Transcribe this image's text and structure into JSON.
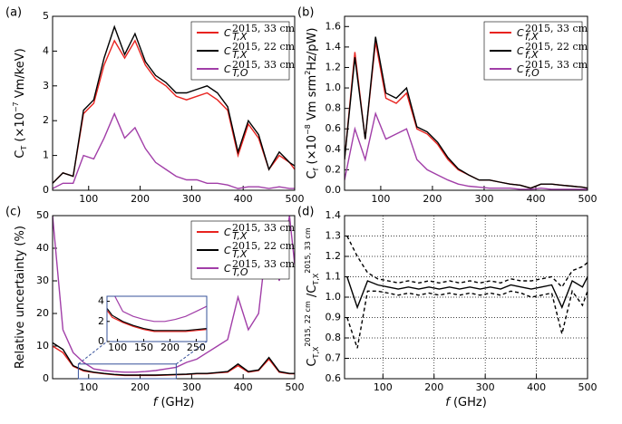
{
  "chart_data": [
    {
      "type": "line",
      "panel": "(a)",
      "ylabel": [
        [
          "C",
          ""
        ],
        [
          "T",
          "sub"
        ],
        [
          " (×10",
          ""
        ],
        [
          "−7",
          "sup"
        ],
        [
          " Vm/keV)",
          ""
        ]
      ],
      "x": [
        30,
        50,
        70,
        90,
        110,
        130,
        150,
        170,
        190,
        210,
        230,
        250,
        270,
        290,
        310,
        330,
        350,
        370,
        390,
        410,
        430,
        450,
        470,
        490,
        500
      ],
      "xlim": [
        30,
        500
      ],
      "ylim": [
        0,
        5
      ],
      "xticks": [
        100,
        200,
        300,
        400,
        500
      ],
      "yticks": [
        0,
        1,
        2,
        3,
        4,
        5
      ],
      "legend": "upper right",
      "series": [
        {
          "name": "C",
          "subscript": "T,X",
          "superscript": "2015, 33 cm",
          "color": "#e8231f",
          "values": [
            0.2,
            0.5,
            0.4,
            2.2,
            2.5,
            3.6,
            4.3,
            3.8,
            4.3,
            3.6,
            3.2,
            3.0,
            2.7,
            2.6,
            2.7,
            2.8,
            2.6,
            2.3,
            1.0,
            1.9,
            1.5,
            0.6,
            1.0,
            0.8,
            0.6
          ]
        },
        {
          "name": "C",
          "subscript": "T,X",
          "superscript": "2015, 22 cm",
          "color": "#000000",
          "values": [
            0.2,
            0.5,
            0.4,
            2.3,
            2.6,
            3.8,
            4.7,
            3.9,
            4.5,
            3.7,
            3.3,
            3.1,
            2.8,
            2.8,
            2.9,
            3.0,
            2.8,
            2.4,
            1.1,
            2.0,
            1.6,
            0.6,
            1.1,
            0.8,
            0.7
          ]
        },
        {
          "name": "C",
          "subscript": "T,O",
          "superscript": "2015, 33 cm",
          "color": "#a13ea8",
          "values": [
            0.05,
            0.2,
            0.2,
            1.0,
            0.9,
            1.5,
            2.2,
            1.5,
            1.8,
            1.2,
            0.8,
            0.6,
            0.4,
            0.3,
            0.3,
            0.2,
            0.2,
            0.15,
            0.05,
            0.1,
            0.1,
            0.05,
            0.1,
            0.05,
            0.05
          ]
        }
      ]
    },
    {
      "type": "line",
      "panel": "(b)",
      "ylabel": [
        [
          "C",
          ""
        ],
        [
          "f",
          "sub"
        ],
        [
          " (×10",
          ""
        ],
        [
          "−8",
          "sup"
        ],
        [
          " Vm srm",
          ""
        ],
        [
          "2",
          "sup"
        ],
        [
          "Hz/pW)",
          ""
        ]
      ],
      "x": [
        30,
        50,
        70,
        90,
        110,
        130,
        150,
        170,
        190,
        210,
        230,
        250,
        270,
        290,
        310,
        330,
        350,
        370,
        390,
        410,
        430,
        450,
        470,
        490,
        500
      ],
      "xlim": [
        30,
        500
      ],
      "ylim": [
        0,
        1.7
      ],
      "xticks": [
        100,
        200,
        300,
        400,
        500
      ],
      "yticks": [
        {
          "value": 0,
          "label": "0.0"
        },
        0.2,
        0.4,
        0.6,
        0.8,
        {
          "value": 1,
          "label": "1.0"
        },
        1.2,
        1.4,
        1.6
      ],
      "legend": "upper right",
      "series": [
        {
          "name": "C",
          "subscript": "f,X",
          "superscript": "2015, 33 cm",
          "color": "#e8231f",
          "values": [
            0.3,
            1.35,
            0.5,
            1.45,
            0.9,
            0.85,
            0.95,
            0.6,
            0.55,
            0.45,
            0.3,
            0.2,
            0.15,
            0.1,
            0.1,
            0.08,
            0.06,
            0.05,
            0.02,
            0.06,
            0.06,
            0.05,
            0.04,
            0.03,
            0.02
          ]
        },
        {
          "name": "C",
          "subscript": "f,X",
          "superscript": "2015, 22 cm",
          "color": "#000000",
          "values": [
            0.3,
            1.3,
            0.5,
            1.5,
            0.95,
            0.9,
            1.0,
            0.62,
            0.57,
            0.47,
            0.32,
            0.21,
            0.15,
            0.1,
            0.1,
            0.08,
            0.06,
            0.05,
            0.02,
            0.06,
            0.06,
            0.05,
            0.04,
            0.03,
            0.02
          ]
        },
        {
          "name": "C",
          "subscript": "f,O",
          "superscript": "2015, 33 cm",
          "color": "#a13ea8",
          "values": [
            0.1,
            0.6,
            0.3,
            0.75,
            0.5,
            0.55,
            0.6,
            0.3,
            0.2,
            0.15,
            0.1,
            0.06,
            0.04,
            0.03,
            0.02,
            0.02,
            0.02,
            0.01,
            0.01,
            0.02,
            0.01,
            0.01,
            0.01,
            0.01,
            0.01
          ]
        }
      ]
    },
    {
      "type": "line",
      "panel": "(c)",
      "ylabel": [
        [
          "Relative uncertainty (%)",
          ""
        ]
      ],
      "xlabel": [
        [
          "f",
          "i"
        ],
        [
          " (GHz)",
          ""
        ]
      ],
      "x": [
        30,
        50,
        70,
        90,
        110,
        130,
        150,
        170,
        190,
        210,
        230,
        250,
        270,
        290,
        310,
        330,
        350,
        370,
        390,
        410,
        430,
        450,
        470,
        490,
        500
      ],
      "xlim": [
        30,
        500
      ],
      "ylim": [
        0,
        50
      ],
      "xticks": [
        100,
        200,
        300,
        400,
        500
      ],
      "yticks": [
        0,
        10,
        20,
        30,
        40,
        50
      ],
      "legend": "upper right",
      "inset": {
        "xlim": [
          80,
          270
        ],
        "ylim": [
          0,
          4.5
        ],
        "xticks": [
          100,
          150,
          200,
          250
        ],
        "yticks": [
          0,
          2,
          4
        ]
      },
      "series": [
        {
          "name": "C",
          "subscript": "T,X",
          "superscript": "2015, 33 cm",
          "color": "#e8231f",
          "values": [
            10,
            8,
            3.8,
            2.4,
            1.9,
            1.5,
            1.2,
            1,
            1,
            1,
            1,
            1.1,
            1.2,
            1.3,
            1.5,
            1.5,
            1.8,
            2,
            4,
            2,
            2.5,
            6,
            2,
            1.5,
            1.5
          ]
        },
        {
          "name": "C",
          "subscript": "T,X",
          "superscript": "2015, 22 cm",
          "color": "#000000",
          "values": [
            11,
            9,
            4,
            2.6,
            2,
            1.6,
            1.3,
            1.1,
            1.1,
            1.1,
            1.1,
            1.2,
            1.3,
            1.4,
            1.6,
            1.6,
            1.9,
            2.2,
            4.5,
            2.2,
            2.7,
            6.5,
            2.2,
            1.6,
            1.6
          ]
        },
        {
          "name": "C",
          "subscript": "T,O",
          "superscript": "2015, 33 cm",
          "color": "#a13ea8",
          "values": [
            50,
            15,
            8,
            5,
            3,
            2.5,
            2.2,
            2,
            2,
            2.2,
            2.5,
            3,
            3.5,
            5,
            6,
            8,
            10,
            12,
            25,
            15,
            20,
            48,
            30,
            50,
            35
          ]
        }
      ]
    },
    {
      "type": "line",
      "panel": "(d)",
      "ylabel": [
        [
          "C",
          ""
        ],
        [
          "T,X",
          "sub"
        ],
        [
          "2015, 22 cm",
          "sup"
        ],
        [
          " /C",
          ""
        ],
        [
          "T,X",
          "sub"
        ],
        [
          "2015, 33 cm",
          "sup"
        ]
      ],
      "xlabel": [
        [
          "f",
          "i"
        ],
        [
          " (GHz)",
          ""
        ]
      ],
      "x": [
        30,
        50,
        70,
        90,
        110,
        130,
        150,
        170,
        190,
        210,
        230,
        250,
        270,
        290,
        310,
        330,
        350,
        370,
        390,
        410,
        430,
        450,
        470,
        490,
        500
      ],
      "xlim": [
        25,
        500
      ],
      "ylim": [
        0.6,
        1.4
      ],
      "xticks": [
        100,
        200,
        300,
        400,
        500
      ],
      "yticks": [
        0.6,
        0.7,
        0.8,
        0.9,
        {
          "value": 1,
          "label": "1.0"
        },
        1.1,
        1.2,
        1.3,
        1.4
      ],
      "grid": true,
      "series": [
        {
          "color": "#000000",
          "dash": false,
          "values": [
            1.1,
            0.95,
            1.08,
            1.06,
            1.05,
            1.04,
            1.05,
            1.04,
            1.05,
            1.04,
            1.05,
            1.04,
            1.05,
            1.04,
            1.05,
            1.04,
            1.06,
            1.05,
            1.04,
            1.05,
            1.06,
            0.95,
            1.08,
            1.05,
            1.1
          ]
        },
        {
          "color": "#000000",
          "dash": true,
          "values": [
            1.3,
            1.2,
            1.12,
            1.09,
            1.08,
            1.07,
            1.08,
            1.07,
            1.08,
            1.07,
            1.08,
            1.07,
            1.08,
            1.07,
            1.08,
            1.07,
            1.09,
            1.08,
            1.08,
            1.09,
            1.1,
            1.05,
            1.13,
            1.15,
            1.17
          ]
        },
        {
          "color": "#000000",
          "dash": true,
          "values": [
            0.9,
            0.75,
            1.03,
            1.03,
            1.02,
            1.01,
            1.02,
            1.01,
            1.02,
            1.01,
            1.02,
            1.01,
            1.02,
            1.01,
            1.02,
            1.01,
            1.03,
            1.02,
            1.0,
            1.01,
            1.02,
            0.82,
            1.03,
            0.96,
            1.03
          ]
        }
      ]
    }
  ]
}
